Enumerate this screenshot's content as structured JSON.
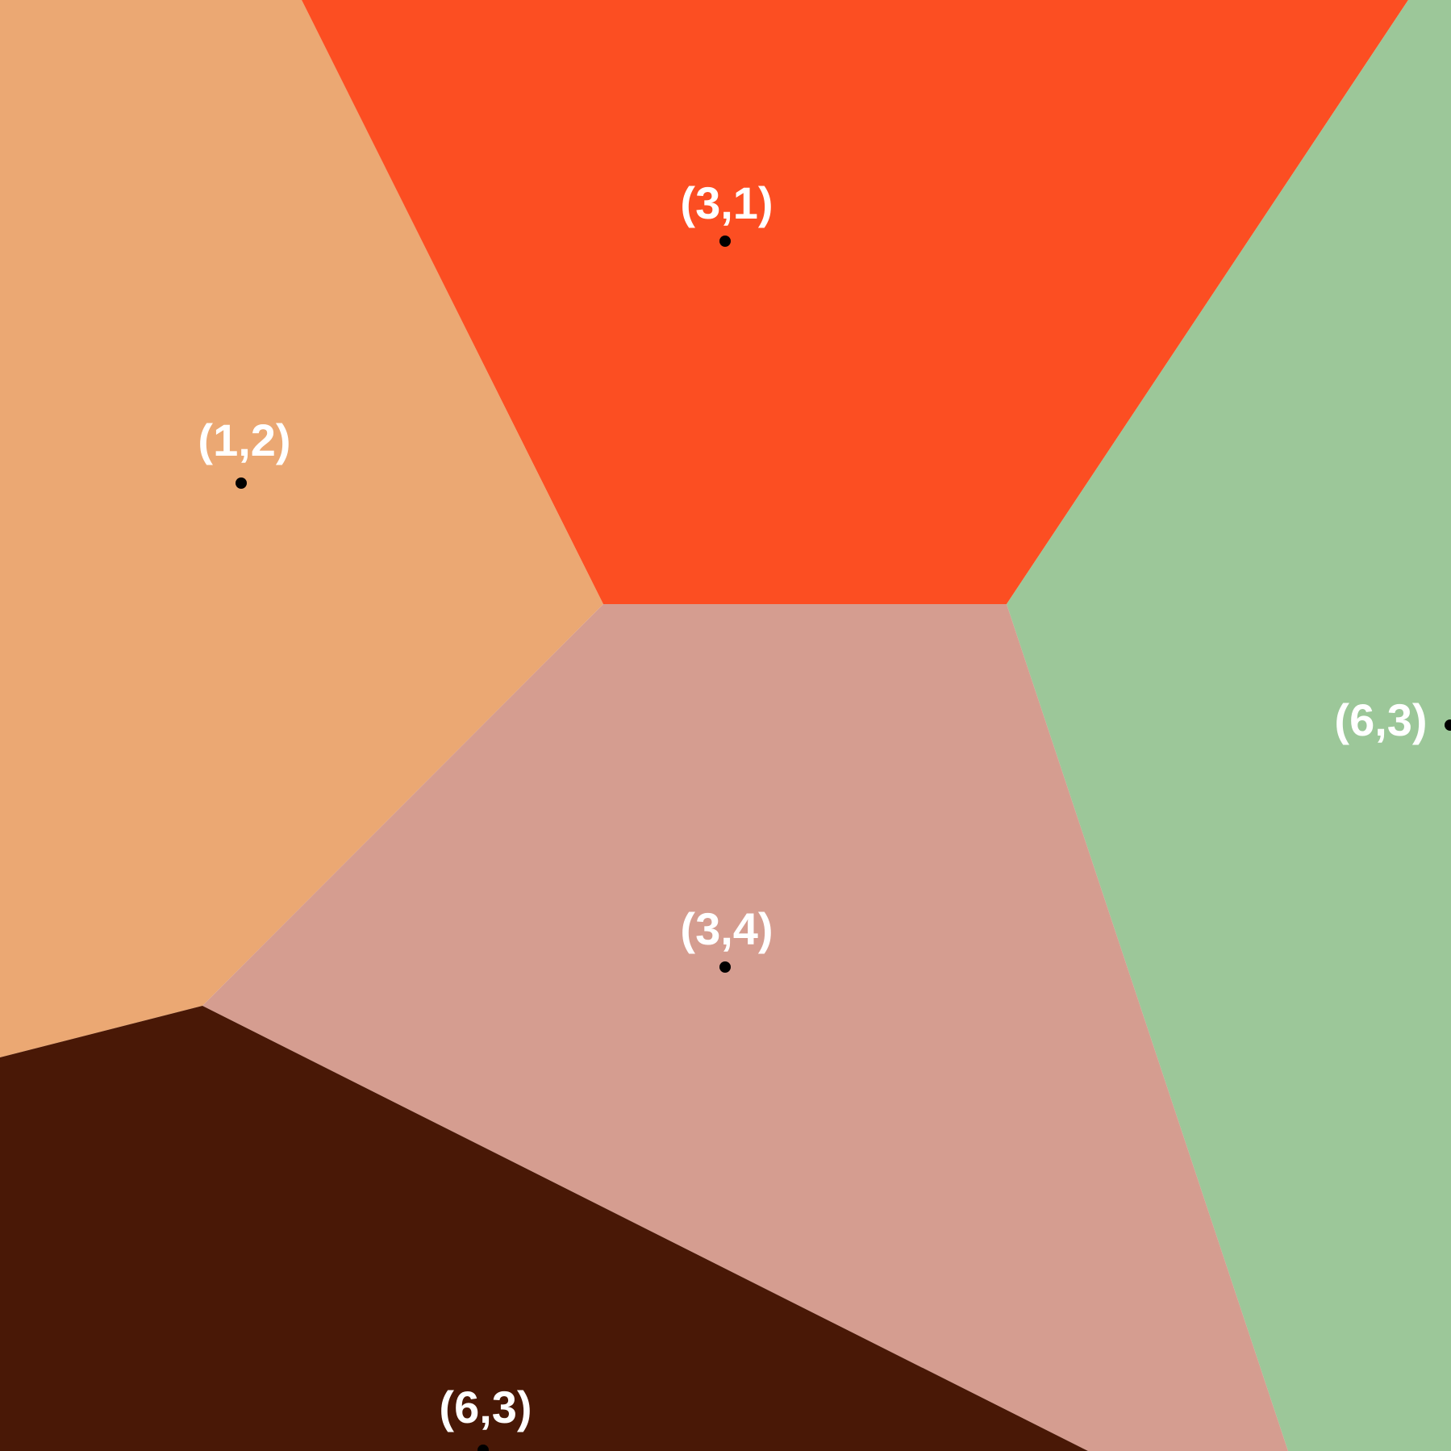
{
  "diagram": {
    "type": "voronoi",
    "regions": [
      {
        "id": "r12",
        "color": "#eba873"
      },
      {
        "id": "r31",
        "color": "#fc4e22"
      },
      {
        "id": "r63-right",
        "color": "#9cc799"
      },
      {
        "id": "r34",
        "color": "#d59d90"
      },
      {
        "id": "r63-bottom",
        "color": "#491806"
      }
    ],
    "sites": [
      {
        "id": "s12",
        "label": "(1,2)"
      },
      {
        "id": "s31",
        "label": "(3,1)"
      },
      {
        "id": "s34",
        "label": "(3,4)"
      },
      {
        "id": "s63-right",
        "label": "(6,3)"
      },
      {
        "id": "s63-bottom",
        "label": "(6,3)"
      }
    ]
  }
}
